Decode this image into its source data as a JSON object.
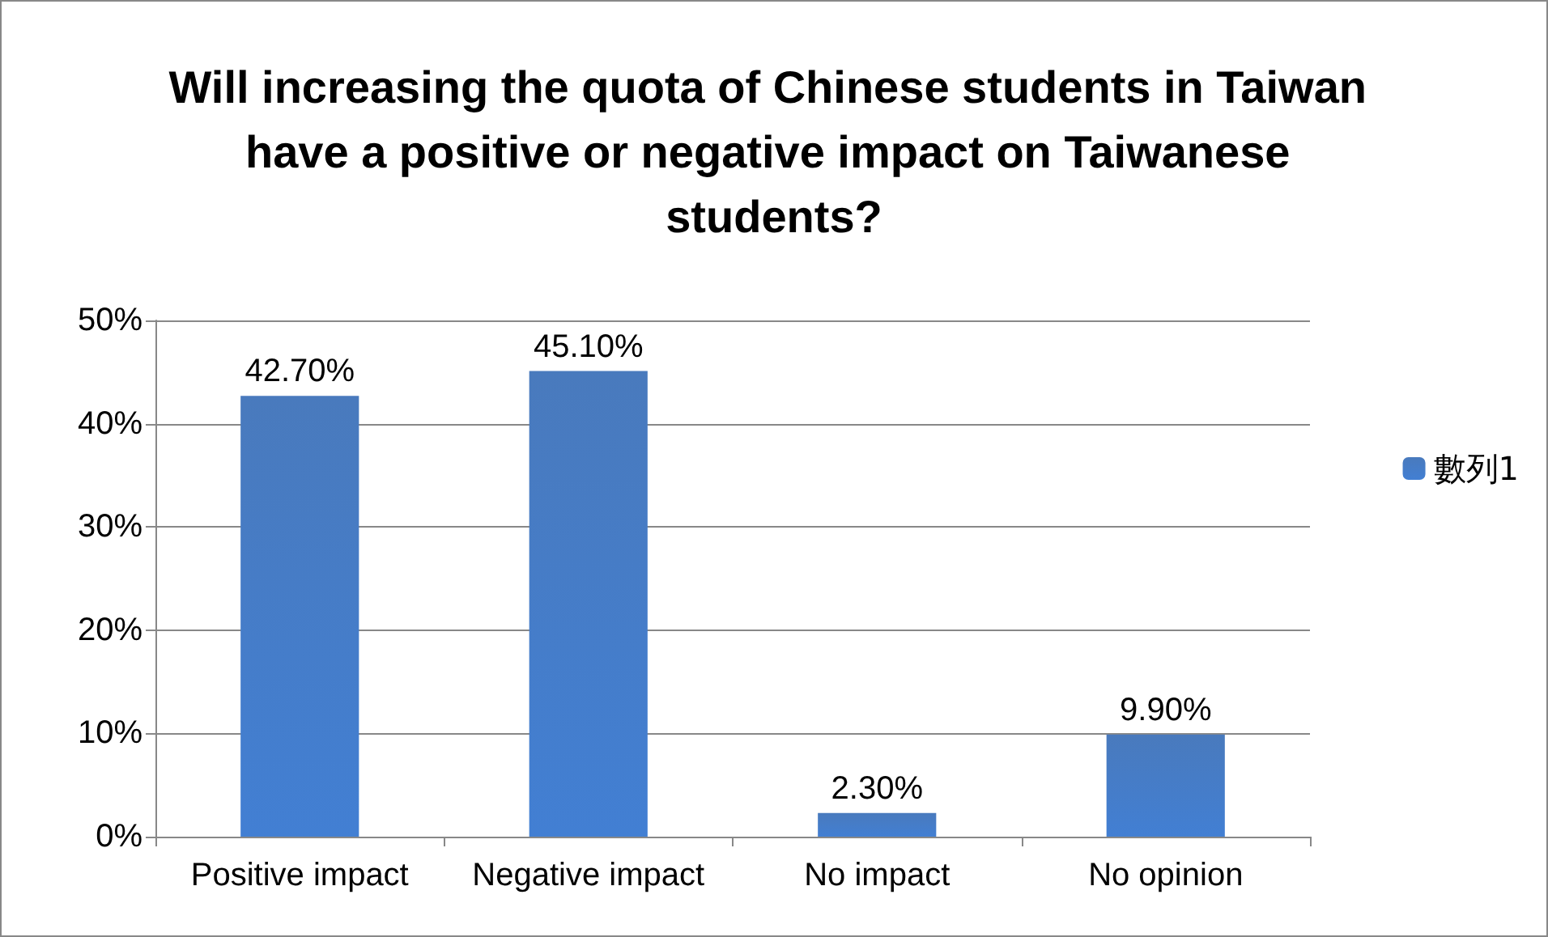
{
  "chart_data": {
    "type": "bar",
    "title": "Will increasing the quota of Chinese students in Taiwan have a positive or negative impact on Taiwanese students?",
    "categories": [
      "Positive impact",
      "Negative impact",
      "No impact",
      "No opinion"
    ],
    "series": [
      {
        "name": "數列1",
        "color": "#3a6fb8",
        "values": [
          42.7,
          45.1,
          2.3,
          9.9
        ],
        "value_labels": [
          "42.70%",
          "45.10%",
          "2.30%",
          "9.90%"
        ]
      }
    ],
    "ylim": [
      0,
      50
    ],
    "yticks": [
      {
        "value": 0,
        "label": "0%"
      },
      {
        "value": 10,
        "label": "10%"
      },
      {
        "value": 20,
        "label": "20%"
      },
      {
        "value": 30,
        "label": "30%"
      },
      {
        "value": 40,
        "label": "40%"
      },
      {
        "value": 50,
        "label": "50%"
      }
    ],
    "grid": "y",
    "legend": "right"
  }
}
